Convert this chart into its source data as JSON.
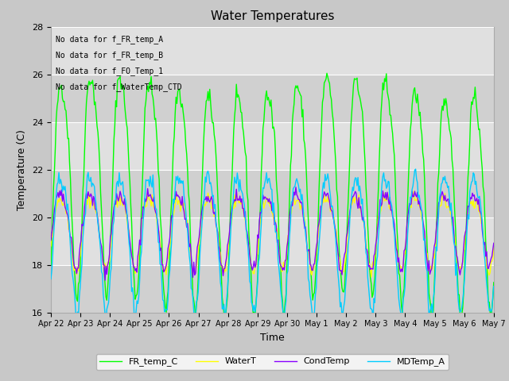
{
  "title": "Water Temperatures",
  "xlabel": "Time",
  "ylabel": "Temperature (C)",
  "ylim": [
    16,
    28
  ],
  "yticks": [
    16,
    18,
    20,
    22,
    24,
    26,
    28
  ],
  "legend_labels": [
    "FR_temp_C",
    "WaterT",
    "CondTemp",
    "MDTemp_A"
  ],
  "legend_colors": [
    "#00ff00",
    "#ffff00",
    "#8800ff",
    "#00ccff"
  ],
  "text_annotations": [
    "No data for f_FR_temp_A",
    "No data for f_FR_temp_B",
    "No data for f_FO_Temp_1",
    "No data for f_WaterTemp_CTD"
  ],
  "date_labels": [
    "Apr 22",
    "Apr 23",
    "Apr 24",
    "Apr 25",
    "Apr 26",
    "Apr 27",
    "Apr 28",
    "Apr 29",
    "Apr 30",
    "May 1",
    "May 2",
    "May 3",
    "May 4",
    "May 5",
    "May 6",
    "May 7"
  ],
  "n_points": 500,
  "start_day": 0,
  "end_day": 15,
  "fig_bg": "#c8c8c8",
  "plot_bg": "#e0e0e0",
  "band_colors": [
    "#d0d0d0",
    "#e0e0e0"
  ]
}
